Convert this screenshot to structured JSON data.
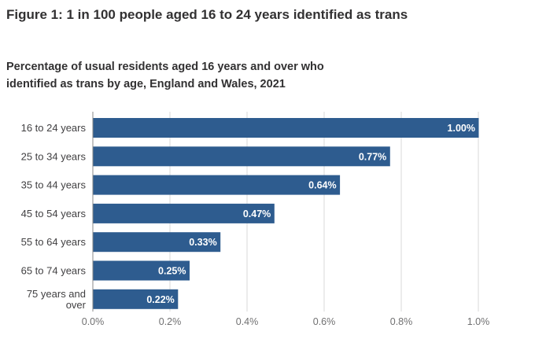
{
  "figure": {
    "title": "Figure 1: 1 in 100 people aged 16 to 24 years identified as trans",
    "subtitle": "Percentage of usual residents aged 16 years and over who identified as trans by age, England and Wales, 2021"
  },
  "colors": {
    "bar": "#2e5c8f",
    "grid": "#d9d9d9",
    "value_label": "#ffffff"
  },
  "chart_data": {
    "type": "bar",
    "orientation": "horizontal",
    "title": "Figure 1: 1 in 100 people aged 16 to 24 years identified as trans",
    "subtitle": "Percentage of usual residents aged 16 years and over who identified as trans by age, England and Wales, 2021",
    "categories": [
      "16 to 24 years",
      "25 to 34 years",
      "35 to 44 years",
      "45 to 54 years",
      "55 to 64 years",
      "65 to 74 years",
      "75 years and over"
    ],
    "category_lines": [
      [
        "16 to 24 years"
      ],
      [
        "25 to 34 years"
      ],
      [
        "35 to 44 years"
      ],
      [
        "45 to 54 years"
      ],
      [
        "55 to 64 years"
      ],
      [
        "65 to 74 years"
      ],
      [
        "75 years and",
        "over"
      ]
    ],
    "values": [
      1.0,
      0.77,
      0.64,
      0.47,
      0.33,
      0.25,
      0.22
    ],
    "value_labels": [
      "1.00%",
      "0.77%",
      "0.64%",
      "0.47%",
      "0.33%",
      "0.25%",
      "0.22%"
    ],
    "xlim": [
      0,
      1.0
    ],
    "xticks": [
      0,
      0.2,
      0.4,
      0.6,
      0.8,
      1.0
    ],
    "xtick_labels": [
      "0.0%",
      "0.2%",
      "0.4%",
      "0.6%",
      "0.8%",
      "1.0%"
    ],
    "xlabel": "",
    "ylabel": "",
    "grid": true,
    "legend": "none"
  }
}
